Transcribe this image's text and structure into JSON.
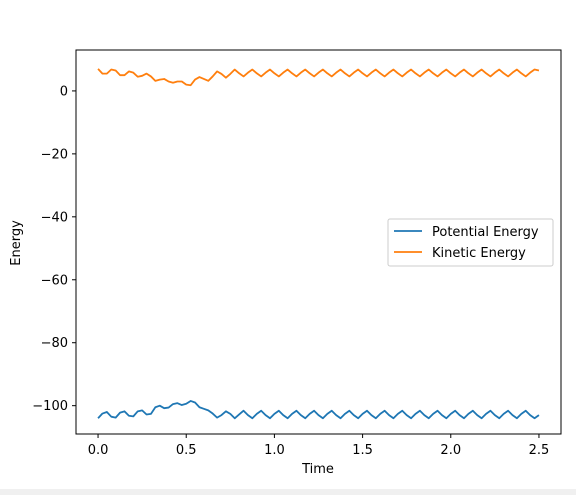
{
  "chart_data": {
    "type": "line",
    "title": "",
    "xlabel": "Time",
    "ylabel": "Energy",
    "xlim": [
      -0.125,
      2.625
    ],
    "ylim": [
      -109,
      13
    ],
    "xticks": [
      0.0,
      0.5,
      1.0,
      1.5,
      2.0,
      2.5
    ],
    "xtick_labels": [
      "0.0",
      "0.5",
      "1.0",
      "1.5",
      "2.0",
      "2.5"
    ],
    "yticks": [
      -100,
      -80,
      -60,
      -40,
      -20,
      0
    ],
    "ytick_labels": [
      "−100",
      "−80",
      "−60",
      "−40",
      "−20",
      "0"
    ],
    "grid": false,
    "legend_position": "center-right",
    "series": [
      {
        "name": "Potential Energy",
        "color": "#1f77b4",
        "x": [
          0.0,
          0.025,
          0.05,
          0.075,
          0.1,
          0.125,
          0.15,
          0.175,
          0.2,
          0.225,
          0.25,
          0.275,
          0.3,
          0.325,
          0.35,
          0.375,
          0.4,
          0.425,
          0.45,
          0.475,
          0.5,
          0.525,
          0.55,
          0.575,
          0.6,
          0.625,
          0.65,
          0.675,
          0.7,
          0.725,
          0.75,
          0.775,
          0.8,
          0.825,
          0.85,
          0.875,
          0.9,
          0.925,
          0.95,
          0.975,
          1.0,
          1.025,
          1.05,
          1.075,
          1.1,
          1.125,
          1.15,
          1.175,
          1.2,
          1.225,
          1.25,
          1.275,
          1.3,
          1.325,
          1.35,
          1.375,
          1.4,
          1.425,
          1.45,
          1.475,
          1.5,
          1.525,
          1.55,
          1.575,
          1.6,
          1.625,
          1.65,
          1.675,
          1.7,
          1.725,
          1.75,
          1.775,
          1.8,
          1.825,
          1.85,
          1.875,
          1.9,
          1.925,
          1.95,
          1.975,
          2.0,
          2.025,
          2.05,
          2.075,
          2.1,
          2.125,
          2.15,
          2.175,
          2.2,
          2.225,
          2.25,
          2.275,
          2.3,
          2.325,
          2.35,
          2.375,
          2.4,
          2.425,
          2.45,
          2.475,
          2.5
        ],
        "y": [
          -104,
          -102.5,
          -102,
          -103.5,
          -103.8,
          -102.2,
          -101.8,
          -103.2,
          -103.4,
          -101.8,
          -101.5,
          -102.8,
          -102.6,
          -100.5,
          -100,
          -100.8,
          -100.6,
          -99.5,
          -99.2,
          -99.8,
          -99.4,
          -98.5,
          -99,
          -100.5,
          -101,
          -101.5,
          -102.5,
          -103.8,
          -103,
          -101.8,
          -102.6,
          -104,
          -102.8,
          -101.6,
          -103,
          -104,
          -102.6,
          -101.6,
          -103,
          -104,
          -102.6,
          -101.6,
          -103,
          -104,
          -102.6,
          -101.6,
          -103,
          -104,
          -102.6,
          -101.6,
          -103,
          -104,
          -102.6,
          -101.6,
          -103,
          -104,
          -102.6,
          -101.6,
          -103,
          -104,
          -102.6,
          -101.6,
          -103,
          -104,
          -102.6,
          -101.6,
          -103,
          -104,
          -102.6,
          -101.6,
          -103,
          -104,
          -102.6,
          -101.6,
          -103,
          -104,
          -102.6,
          -101.6,
          -103,
          -104,
          -102.6,
          -101.6,
          -103,
          -104,
          -102.6,
          -101.6,
          -103,
          -104,
          -102.6,
          -101.6,
          -103,
          -104,
          -102.6,
          -101.6,
          -103,
          -104,
          -102.6,
          -101.6,
          -103,
          -104,
          -103
        ]
      },
      {
        "name": "Kinetic Energy",
        "color": "#ff7f0e",
        "x": [
          0.0,
          0.025,
          0.05,
          0.075,
          0.1,
          0.125,
          0.15,
          0.175,
          0.2,
          0.225,
          0.25,
          0.275,
          0.3,
          0.325,
          0.35,
          0.375,
          0.4,
          0.425,
          0.45,
          0.475,
          0.5,
          0.525,
          0.55,
          0.575,
          0.6,
          0.625,
          0.65,
          0.675,
          0.7,
          0.725,
          0.75,
          0.775,
          0.8,
          0.825,
          0.85,
          0.875,
          0.9,
          0.925,
          0.95,
          0.975,
          1.0,
          1.025,
          1.05,
          1.075,
          1.1,
          1.125,
          1.15,
          1.175,
          1.2,
          1.225,
          1.25,
          1.275,
          1.3,
          1.325,
          1.35,
          1.375,
          1.4,
          1.425,
          1.45,
          1.475,
          1.5,
          1.525,
          1.55,
          1.575,
          1.6,
          1.625,
          1.65,
          1.675,
          1.7,
          1.725,
          1.75,
          1.775,
          1.8,
          1.825,
          1.85,
          1.875,
          1.9,
          1.925,
          1.95,
          1.975,
          2.0,
          2.025,
          2.05,
          2.075,
          2.1,
          2.125,
          2.15,
          2.175,
          2.2,
          2.225,
          2.25,
          2.275,
          2.3,
          2.325,
          2.35,
          2.375,
          2.4,
          2.425,
          2.45,
          2.475,
          2.5
        ],
        "y": [
          7,
          5.5,
          5.5,
          6.8,
          6.5,
          5,
          5,
          6.2,
          5.8,
          4.5,
          4.8,
          5.5,
          4.6,
          3.2,
          3.6,
          3.8,
          3,
          2.6,
          3,
          3,
          2,
          1.8,
          3.6,
          4.4,
          3.8,
          3.2,
          4.6,
          6.2,
          5.4,
          4.2,
          5.4,
          6.8,
          5.6,
          4.6,
          5.8,
          6.8,
          5.6,
          4.6,
          5.8,
          6.8,
          5.6,
          4.6,
          5.8,
          6.8,
          5.6,
          4.6,
          5.8,
          6.8,
          5.6,
          4.6,
          5.8,
          6.8,
          5.6,
          4.6,
          5.8,
          6.8,
          5.6,
          4.6,
          5.8,
          6.8,
          5.6,
          4.6,
          5.8,
          6.8,
          5.6,
          4.6,
          5.8,
          6.8,
          5.6,
          4.6,
          5.8,
          6.8,
          5.6,
          4.6,
          5.8,
          6.8,
          5.6,
          4.6,
          5.8,
          6.8,
          5.6,
          4.6,
          5.8,
          6.8,
          5.6,
          4.6,
          5.8,
          6.8,
          5.6,
          4.6,
          5.8,
          6.8,
          5.6,
          4.6,
          5.8,
          6.8,
          5.6,
          4.6,
          5.8,
          6.8,
          6.5
        ]
      }
    ]
  }
}
